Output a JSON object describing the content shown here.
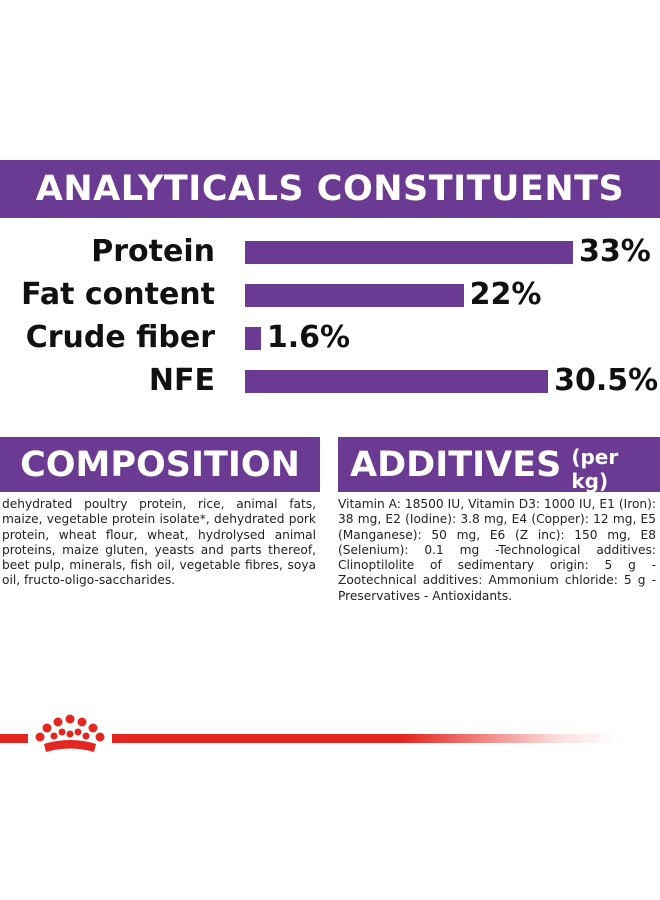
{
  "analyticals": {
    "title": "ANALYTICALS CONSTITUENTS",
    "rows": [
      {
        "label": "Protein",
        "value": "33%",
        "percent": 33
      },
      {
        "label": "Fat content",
        "value": "22%",
        "percent": 22
      },
      {
        "label": "Crude fiber",
        "value": "1.6%",
        "percent": 1.6
      },
      {
        "label": "NFE",
        "value": "30.5%",
        "percent": 30.5
      }
    ]
  },
  "composition": {
    "title": "COMPOSITION",
    "text": "dehydrated poultry protein, rice, animal fats, maize, vegetable protein isolate*, dehydrated pork protein, wheat flour, wheat, hydrolysed animal proteins, maize gluten, yeasts and parts thereof, beet pulp, minerals, fish oil, vegetable fibres, soya oil, fructo-oligo-saccharides."
  },
  "additives": {
    "title": "ADDITIVES",
    "subtitle": "(per kg)",
    "text": "Vitamin A: 18500 IU, Vitamin D3: 1000 IU, E1 (Iron): 38 mg, E2 (Iodine): 3.8 mg, E4 (Copper): 12 mg, E5 (Manganese): 50 mg, E6 (Z inc): 150 mg, E8 (Selenium): 0.1 mg -Technological additives: Clinoptilolite of sedimentary origin: 5 g - Zootechnical additives: Ammonium chloride: 5 g - Preservatives - Antioxidants."
  },
  "colors": {
    "brand_purple": "#6b3a93",
    "brand_red": "#e3261f"
  },
  "footer": {
    "logo_icon": "royal-canin-crown-icon"
  }
}
